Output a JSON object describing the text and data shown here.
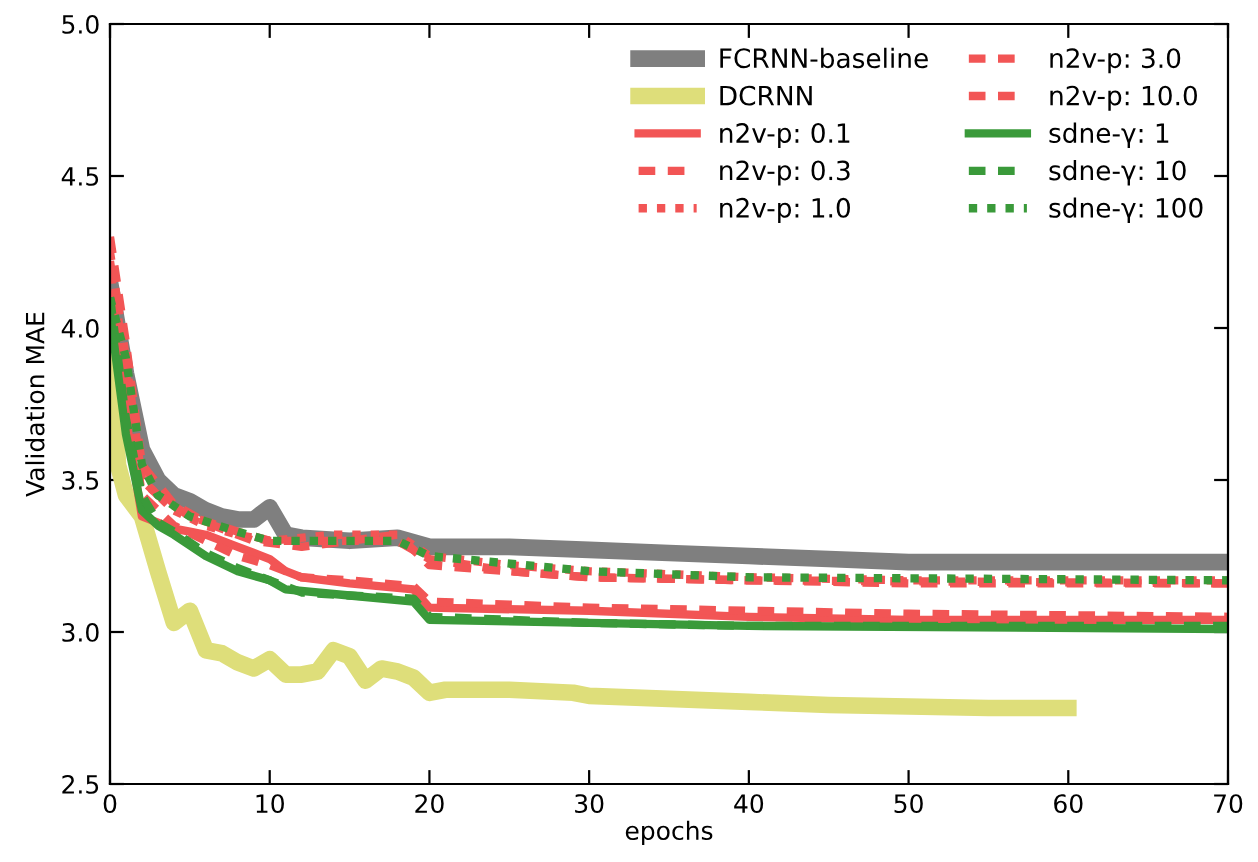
{
  "chart_data": {
    "type": "line",
    "xlabel": "epochs",
    "ylabel": "Validation MAE",
    "xlim": [
      0,
      70
    ],
    "xticks": [
      0,
      10,
      20,
      30,
      40,
      50,
      60,
      70
    ],
    "ylim": [
      2.5,
      5.0
    ],
    "yticks": [
      2.5,
      {
        "value": 3,
        "label": "3.0"
      },
      3.5,
      {
        "value": 4,
        "label": "4.0"
      },
      4.5,
      {
        "value": 5,
        "label": "5.0"
      }
    ],
    "grid": false,
    "legend": "top right",
    "series": [
      {
        "name": "FCRNN-baseline",
        "color": "#7f7f7f",
        "line_style": "solid",
        "x": [
          0,
          1,
          2,
          3,
          4,
          5,
          6,
          7,
          8,
          9,
          10,
          11,
          12,
          15,
          18,
          20,
          25,
          30,
          35,
          40,
          45,
          50,
          60,
          70
        ],
        "values": [
          4.15,
          3.85,
          3.6,
          3.5,
          3.45,
          3.43,
          3.4,
          3.38,
          3.37,
          3.37,
          3.41,
          3.32,
          3.31,
          3.3,
          3.31,
          3.28,
          3.28,
          3.27,
          3.26,
          3.25,
          3.24,
          3.23,
          3.23,
          3.23
        ]
      },
      {
        "name": "DCRNN",
        "color": "#dede7a",
        "line_style": "solid",
        "x": [
          0,
          0.5,
          1,
          2,
          3,
          4,
          5,
          6,
          7,
          8,
          9,
          10,
          11,
          12,
          13,
          14,
          15,
          16,
          17,
          18,
          19,
          20,
          21,
          25,
          29,
          30,
          35,
          40,
          45,
          50,
          55,
          60
        ],
        "values": [
          4.0,
          3.55,
          3.45,
          3.38,
          3.2,
          3.03,
          3.07,
          2.94,
          2.93,
          2.9,
          2.88,
          2.91,
          2.86,
          2.86,
          2.87,
          2.94,
          2.92,
          2.84,
          2.88,
          2.87,
          2.85,
          2.8,
          2.81,
          2.81,
          2.8,
          2.79,
          2.78,
          2.77,
          2.76,
          2.755,
          2.75,
          2.75
        ]
      },
      {
        "name": "n2v-p: 0.1",
        "color": "#f25555",
        "line_style": "solid",
        "x": [
          0,
          1,
          2,
          3,
          4,
          5,
          6,
          8,
          10,
          11,
          12,
          15,
          19,
          20,
          30,
          40,
          50,
          70
        ],
        "values": [
          4.1,
          3.7,
          3.38,
          3.36,
          3.34,
          3.33,
          3.32,
          3.28,
          3.24,
          3.2,
          3.18,
          3.16,
          3.14,
          3.08,
          3.07,
          3.05,
          3.04,
          3.04
        ]
      },
      {
        "name": "n2v-p: 0.3",
        "color": "#f25555",
        "line_style": "dashed",
        "x": [
          0,
          1,
          2,
          3,
          4,
          6,
          8,
          10,
          12,
          15,
          19,
          20,
          30,
          40,
          50,
          70
        ],
        "values": [
          4.2,
          3.8,
          3.45,
          3.4,
          3.35,
          3.3,
          3.25,
          3.22,
          3.18,
          3.17,
          3.15,
          3.1,
          3.08,
          3.07,
          3.06,
          3.05
        ]
      },
      {
        "name": "n2v-p: 1.0",
        "color": "#f25555",
        "line_style": "dotted",
        "x": [
          0,
          1,
          2,
          3,
          4,
          6,
          8,
          10,
          14,
          18,
          20,
          25,
          30,
          40,
          50,
          70
        ],
        "values": [
          4.25,
          3.9,
          3.5,
          3.45,
          3.4,
          3.35,
          3.32,
          3.3,
          3.32,
          3.32,
          3.25,
          3.22,
          3.2,
          3.18,
          3.17,
          3.17
        ]
      },
      {
        "name": "n2v-p: 3.0",
        "color": "#f25555",
        "line_style": "dashed",
        "x": [
          0,
          1,
          2,
          3,
          5,
          8,
          10,
          13,
          18,
          20,
          25,
          30,
          40,
          70
        ],
        "values": [
          4.22,
          3.85,
          3.5,
          3.45,
          3.38,
          3.33,
          3.3,
          3.3,
          3.3,
          3.24,
          3.2,
          3.18,
          3.17,
          3.16
        ]
      },
      {
        "name": "n2v-p: 10.0",
        "color": "#f25555",
        "line_style": "dashed",
        "x": [
          0,
          1,
          2,
          4,
          6,
          9,
          12,
          15,
          18,
          20,
          25,
          30,
          50,
          70
        ],
        "values": [
          4.3,
          3.95,
          3.55,
          3.42,
          3.36,
          3.3,
          3.28,
          3.3,
          3.32,
          3.22,
          3.2,
          3.18,
          3.16,
          3.16
        ]
      },
      {
        "name": "sdne-γ: 1",
        "color": "#3a9a3a",
        "line_style": "solid",
        "x": [
          0,
          1,
          2,
          3,
          4,
          6,
          8,
          10,
          11,
          15,
          19,
          20,
          30,
          40,
          70
        ],
        "values": [
          4.05,
          3.65,
          3.4,
          3.35,
          3.32,
          3.25,
          3.2,
          3.17,
          3.14,
          3.12,
          3.1,
          3.04,
          3.03,
          3.02,
          3.01
        ]
      },
      {
        "name": "sdne-γ: 10",
        "color": "#3a9a3a",
        "line_style": "dashed",
        "x": [
          0,
          1,
          2,
          3,
          4,
          6,
          8,
          10,
          12,
          15,
          19,
          20,
          30,
          40,
          70
        ],
        "values": [
          4.1,
          3.7,
          3.45,
          3.36,
          3.33,
          3.26,
          3.21,
          3.17,
          3.13,
          3.12,
          3.11,
          3.05,
          3.03,
          3.02,
          3.02
        ]
      },
      {
        "name": "sdne-γ: 100",
        "color": "#3a9a3a",
        "line_style": "dotted",
        "x": [
          0,
          1,
          2,
          3,
          5,
          8,
          10,
          15,
          18,
          20,
          30,
          40,
          70
        ],
        "values": [
          4.1,
          3.9,
          3.55,
          3.45,
          3.38,
          3.33,
          3.3,
          3.3,
          3.3,
          3.25,
          3.2,
          3.18,
          3.17
        ]
      }
    ]
  }
}
